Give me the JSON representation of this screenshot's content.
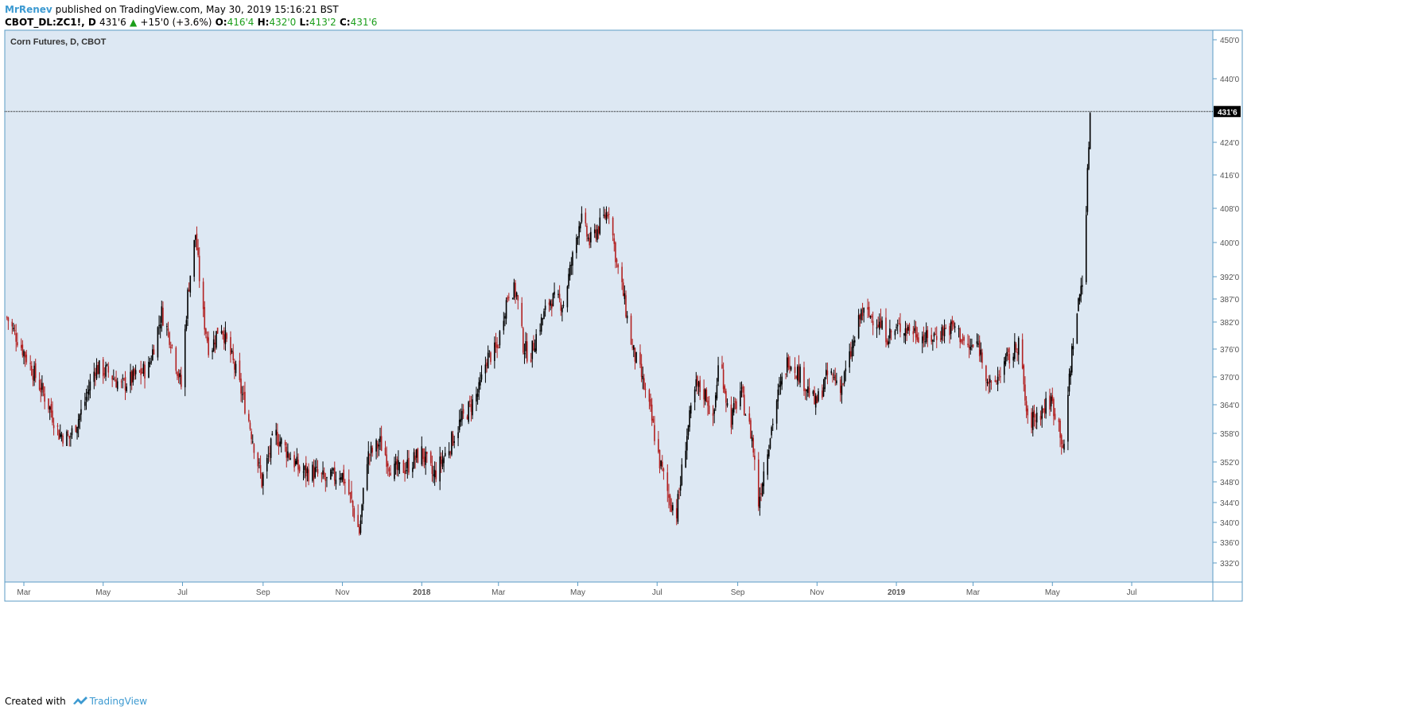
{
  "header": {
    "author": "MrRenev",
    "published": "published on TradingView.com, May 30, 2019 15:16:21 BST",
    "symbol": "CBOT_DL:ZC1!, D",
    "last": "431'6",
    "change": "+15'0 (+3.6%)",
    "o_label": "O:",
    "o_value": "416'4",
    "h_label": "H:",
    "h_value": "432'0",
    "l_label": "L:",
    "l_value": "413'2",
    "c_label": "C:",
    "c_value": "431'6"
  },
  "footer": {
    "created_with": "Created with",
    "brand": "TradingView"
  },
  "colors": {
    "background": "#dde8f3",
    "border": "#5b9bc4",
    "up": "#000000",
    "down": "#b22222",
    "price_label_bg": "#000000"
  },
  "chart_data": {
    "type": "candlestick",
    "title": "Corn Futures, D, CBOT",
    "last_price_label": "431'6",
    "last_price": 431.75,
    "grid": false,
    "y_ticks": [
      {
        "label": "450'0",
        "value": 450
      },
      {
        "label": "440'0",
        "value": 440
      },
      {
        "label": "424'0",
        "value": 424
      },
      {
        "label": "416'0",
        "value": 416
      },
      {
        "label": "408'0",
        "value": 408
      },
      {
        "label": "400'0",
        "value": 400
      },
      {
        "label": "392'0",
        "value": 392
      },
      {
        "label": "387'0",
        "value": 387
      },
      {
        "label": "382'0",
        "value": 382
      },
      {
        "label": "376'0",
        "value": 376
      },
      {
        "label": "370'0",
        "value": 370
      },
      {
        "label": "364'0",
        "value": 364
      },
      {
        "label": "358'0",
        "value": 358
      },
      {
        "label": "352'0",
        "value": 352
      },
      {
        "label": "348'0",
        "value": 348
      },
      {
        "label": "344'0",
        "value": 344
      },
      {
        "label": "340'0",
        "value": 340
      },
      {
        "label": "336'0",
        "value": 336
      },
      {
        "label": "332'0",
        "value": 332
      }
    ],
    "x_ticks": [
      {
        "label": "Mar",
        "date": "2017-03-01",
        "bold": false
      },
      {
        "label": "May",
        "date": "2017-05-01",
        "bold": false
      },
      {
        "label": "Jul",
        "date": "2017-07-01",
        "bold": false
      },
      {
        "label": "Sep",
        "date": "2017-09-01",
        "bold": false
      },
      {
        "label": "Nov",
        "date": "2017-11-01",
        "bold": false
      },
      {
        "label": "2018",
        "date": "2018-01-01",
        "bold": true
      },
      {
        "label": "Mar",
        "date": "2018-03-01",
        "bold": false
      },
      {
        "label": "May",
        "date": "2018-05-01",
        "bold": false
      },
      {
        "label": "Jul",
        "date": "2018-07-01",
        "bold": false
      },
      {
        "label": "Sep",
        "date": "2018-09-01",
        "bold": false
      },
      {
        "label": "Nov",
        "date": "2018-11-01",
        "bold": false
      },
      {
        "label": "2019",
        "date": "2019-01-01",
        "bold": true
      },
      {
        "label": "Mar",
        "date": "2019-03-01",
        "bold": false
      },
      {
        "label": "May",
        "date": "2019-05-01",
        "bold": false
      },
      {
        "label": "Jul",
        "date": "2019-07-01",
        "bold": false
      }
    ],
    "key_points": [
      {
        "date": "2017-02-16",
        "price": 383
      },
      {
        "date": "2017-02-28",
        "price": 376
      },
      {
        "date": "2017-03-10",
        "price": 370
      },
      {
        "date": "2017-03-20",
        "price": 364
      },
      {
        "date": "2017-03-28",
        "price": 358
      },
      {
        "date": "2017-04-05",
        "price": 357
      },
      {
        "date": "2017-04-15",
        "price": 363
      },
      {
        "date": "2017-04-25",
        "price": 372
      },
      {
        "date": "2017-05-05",
        "price": 371
      },
      {
        "date": "2017-05-15",
        "price": 368
      },
      {
        "date": "2017-05-25",
        "price": 370
      },
      {
        "date": "2017-06-05",
        "price": 372
      },
      {
        "date": "2017-06-15",
        "price": 384
      },
      {
        "date": "2017-06-22",
        "price": 378
      },
      {
        "date": "2017-06-30",
        "price": 368
      },
      {
        "date": "2017-07-05",
        "price": 388
      },
      {
        "date": "2017-07-11",
        "price": 402
      },
      {
        "date": "2017-07-16",
        "price": 385
      },
      {
        "date": "2017-07-22",
        "price": 375
      },
      {
        "date": "2017-07-30",
        "price": 382
      },
      {
        "date": "2017-08-10",
        "price": 372
      },
      {
        "date": "2017-08-20",
        "price": 362
      },
      {
        "date": "2017-08-31",
        "price": 348
      },
      {
        "date": "2017-09-10",
        "price": 358
      },
      {
        "date": "2017-09-20",
        "price": 354
      },
      {
        "date": "2017-09-30",
        "price": 350
      },
      {
        "date": "2017-10-10",
        "price": 350
      },
      {
        "date": "2017-10-20",
        "price": 348
      },
      {
        "date": "2017-10-31",
        "price": 350
      },
      {
        "date": "2017-11-07",
        "price": 345
      },
      {
        "date": "2017-11-14",
        "price": 338
      },
      {
        "date": "2017-11-20",
        "price": 353
      },
      {
        "date": "2017-11-30",
        "price": 356
      },
      {
        "date": "2017-12-10",
        "price": 350
      },
      {
        "date": "2017-12-20",
        "price": 351
      },
      {
        "date": "2018-01-01",
        "price": 354
      },
      {
        "date": "2018-01-10",
        "price": 349
      },
      {
        "date": "2018-01-20",
        "price": 354
      },
      {
        "date": "2018-01-30",
        "price": 360
      },
      {
        "date": "2018-02-08",
        "price": 364
      },
      {
        "date": "2018-02-14",
        "price": 367
      },
      {
        "date": "2018-02-20",
        "price": 374
      },
      {
        "date": "2018-02-28",
        "price": 376
      },
      {
        "date": "2018-03-05",
        "price": 384
      },
      {
        "date": "2018-03-10",
        "price": 390
      },
      {
        "date": "2018-03-15",
        "price": 388
      },
      {
        "date": "2018-03-20",
        "price": 377
      },
      {
        "date": "2018-03-25",
        "price": 374
      },
      {
        "date": "2018-03-31",
        "price": 380
      },
      {
        "date": "2018-04-10",
        "price": 387
      },
      {
        "date": "2018-04-20",
        "price": 386
      },
      {
        "date": "2018-04-28",
        "price": 398
      },
      {
        "date": "2018-05-03",
        "price": 406
      },
      {
        "date": "2018-05-10",
        "price": 400
      },
      {
        "date": "2018-05-18",
        "price": 404
      },
      {
        "date": "2018-05-25",
        "price": 408
      },
      {
        "date": "2018-05-31",
        "price": 395
      },
      {
        "date": "2018-06-05",
        "price": 388
      },
      {
        "date": "2018-06-12",
        "price": 376
      },
      {
        "date": "2018-06-19",
        "price": 370
      },
      {
        "date": "2018-06-26",
        "price": 362
      },
      {
        "date": "2018-07-03",
        "price": 352
      },
      {
        "date": "2018-07-10",
        "price": 345
      },
      {
        "date": "2018-07-16",
        "price": 342
      },
      {
        "date": "2018-07-24",
        "price": 358
      },
      {
        "date": "2018-07-31",
        "price": 368
      },
      {
        "date": "2018-08-08",
        "price": 366
      },
      {
        "date": "2018-08-13",
        "price": 360
      },
      {
        "date": "2018-08-18",
        "price": 375
      },
      {
        "date": "2018-08-26",
        "price": 360
      },
      {
        "date": "2018-09-03",
        "price": 367
      },
      {
        "date": "2018-09-12",
        "price": 357
      },
      {
        "date": "2018-09-17",
        "price": 344
      },
      {
        "date": "2018-09-24",
        "price": 355
      },
      {
        "date": "2018-10-01",
        "price": 365
      },
      {
        "date": "2018-10-10",
        "price": 374
      },
      {
        "date": "2018-10-20",
        "price": 370
      },
      {
        "date": "2018-10-31",
        "price": 364
      },
      {
        "date": "2018-11-10",
        "price": 371
      },
      {
        "date": "2018-11-20",
        "price": 368
      },
      {
        "date": "2018-11-28",
        "price": 376
      },
      {
        "date": "2018-12-05",
        "price": 384
      },
      {
        "date": "2018-12-15",
        "price": 383
      },
      {
        "date": "2018-12-25",
        "price": 379
      },
      {
        "date": "2019-01-05",
        "price": 381
      },
      {
        "date": "2019-01-15",
        "price": 380
      },
      {
        "date": "2019-01-25",
        "price": 378
      },
      {
        "date": "2019-02-05",
        "price": 380
      },
      {
        "date": "2019-02-15",
        "price": 381
      },
      {
        "date": "2019-02-25",
        "price": 376
      },
      {
        "date": "2019-03-05",
        "price": 377
      },
      {
        "date": "2019-03-15",
        "price": 367
      },
      {
        "date": "2019-03-25",
        "price": 373
      },
      {
        "date": "2019-04-01",
        "price": 375
      },
      {
        "date": "2019-04-05",
        "price": 378
      },
      {
        "date": "2019-04-12",
        "price": 360
      },
      {
        "date": "2019-04-20",
        "price": 362
      },
      {
        "date": "2019-04-30",
        "price": 365
      },
      {
        "date": "2019-05-06",
        "price": 360
      },
      {
        "date": "2019-05-10",
        "price": 354
      },
      {
        "date": "2019-05-14",
        "price": 370
      },
      {
        "date": "2019-05-17",
        "price": 378
      },
      {
        "date": "2019-05-21",
        "price": 386
      },
      {
        "date": "2019-05-24",
        "price": 392
      },
      {
        "date": "2019-05-26",
        "price": 398
      },
      {
        "date": "2019-05-28",
        "price": 416
      },
      {
        "date": "2019-05-30",
        "price": 431.75
      }
    ]
  }
}
